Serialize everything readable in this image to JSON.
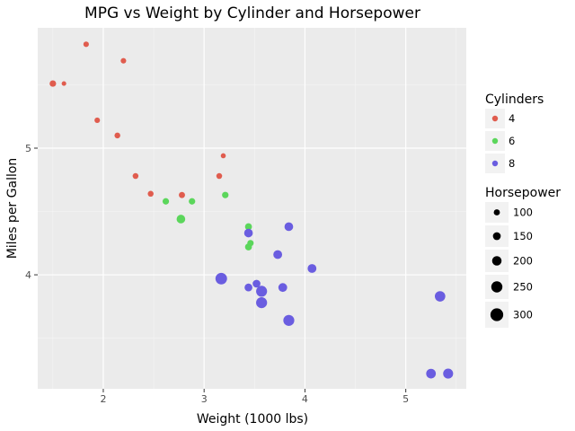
{
  "chart_data": {
    "type": "scatter",
    "title": "MPG vs Weight by Cylinder and Horsepower",
    "xlabel": "Weight (1000 lbs)",
    "ylabel": "Miles per Gallon",
    "xlim": [
      1.35,
      5.6
    ],
    "ylim": [
      3.1,
      5.95
    ],
    "xticks": [
      2,
      3,
      4,
      5
    ],
    "yticks": [
      4,
      5
    ],
    "grid": true,
    "legend_placement": "right",
    "color_legend": {
      "title": "Cylinders",
      "entries": [
        {
          "label": "4",
          "color": "#e05c4e"
        },
        {
          "label": "6",
          "color": "#5bd65b"
        },
        {
          "label": "8",
          "color": "#6a5de0"
        }
      ]
    },
    "size_legend": {
      "title": "Horsepower",
      "entries": [
        {
          "label": "100",
          "value": 100
        },
        {
          "label": "150",
          "value": 150
        },
        {
          "label": "200",
          "value": 200
        },
        {
          "label": "250",
          "value": 250
        },
        {
          "label": "300",
          "value": 300
        }
      ]
    },
    "series": [
      {
        "name": "4",
        "color": "#e05c4e",
        "points": [
          {
            "x": 1.5,
            "y": 5.51,
            "hp": 110
          },
          {
            "x": 1.61,
            "y": 5.51,
            "hp": 52
          },
          {
            "x": 1.83,
            "y": 5.82,
            "hp": 80
          },
          {
            "x": 1.94,
            "y": 5.22,
            "hp": 80
          },
          {
            "x": 2.14,
            "y": 5.1,
            "hp": 90
          },
          {
            "x": 2.2,
            "y": 5.69,
            "hp": 80
          },
          {
            "x": 2.32,
            "y": 4.78,
            "hp": 90
          },
          {
            "x": 2.47,
            "y": 4.64,
            "hp": 90
          },
          {
            "x": 2.78,
            "y": 4.63,
            "hp": 100
          },
          {
            "x": 3.15,
            "y": 4.78,
            "hp": 90
          },
          {
            "x": 3.19,
            "y": 4.94,
            "hp": 66
          }
        ]
      },
      {
        "name": "6",
        "color": "#5bd65b",
        "points": [
          {
            "x": 2.62,
            "y": 4.58,
            "hp": 110
          },
          {
            "x": 2.77,
            "y": 4.44,
            "hp": 175
          },
          {
            "x": 2.88,
            "y": 4.58,
            "hp": 110
          },
          {
            "x": 3.21,
            "y": 4.63,
            "hp": 110
          },
          {
            "x": 3.44,
            "y": 4.38,
            "hp": 123
          },
          {
            "x": 3.44,
            "y": 4.22,
            "hp": 123
          },
          {
            "x": 3.46,
            "y": 4.25,
            "hp": 105
          }
        ]
      },
      {
        "name": "8",
        "color": "#6a5de0",
        "points": [
          {
            "x": 3.17,
            "y": 3.97,
            "hp": 264
          },
          {
            "x": 3.44,
            "y": 4.33,
            "hp": 175
          },
          {
            "x": 3.44,
            "y": 3.9,
            "hp": 150
          },
          {
            "x": 3.52,
            "y": 3.93,
            "hp": 150
          },
          {
            "x": 3.57,
            "y": 3.87,
            "hp": 245
          },
          {
            "x": 3.57,
            "y": 3.78,
            "hp": 245
          },
          {
            "x": 3.73,
            "y": 4.16,
            "hp": 180
          },
          {
            "x": 3.78,
            "y": 3.9,
            "hp": 180
          },
          {
            "x": 3.84,
            "y": 4.38,
            "hp": 175
          },
          {
            "x": 3.84,
            "y": 3.64,
            "hp": 245
          },
          {
            "x": 4.07,
            "y": 4.05,
            "hp": 180
          },
          {
            "x": 5.25,
            "y": 3.22,
            "hp": 205
          },
          {
            "x": 5.34,
            "y": 3.83,
            "hp": 230
          },
          {
            "x": 5.42,
            "y": 3.22,
            "hp": 215
          }
        ]
      }
    ]
  }
}
